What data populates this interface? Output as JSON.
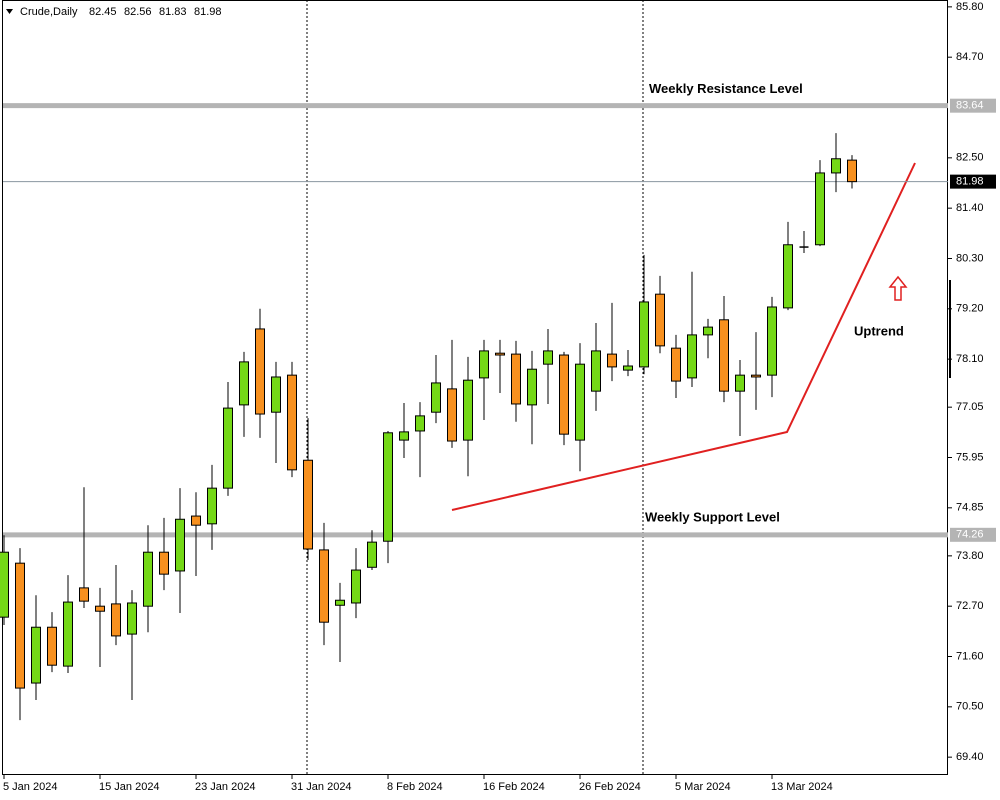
{
  "chart_data": {
    "type": "candlestick",
    "title": "Crude,Daily",
    "header_ohlc": [
      82.45,
      82.56,
      81.83,
      81.98
    ],
    "categories": [
      "5 Jan 2024",
      null,
      null,
      null,
      null,
      null,
      "15 Jan 2024",
      null,
      null,
      null,
      null,
      null,
      "23 Jan 2024",
      null,
      null,
      null,
      null,
      null,
      "31 Jan 2024",
      null,
      null,
      null,
      null,
      null,
      "8 Feb 2024",
      null,
      null,
      null,
      null,
      null,
      "16 Feb 2024",
      null,
      null,
      null,
      null,
      null,
      "26 Feb 2024",
      null,
      null,
      null,
      null,
      null,
      "5 Mar 2024",
      null,
      null,
      null,
      null,
      null,
      "13 Mar 2024",
      null,
      null,
      null,
      null,
      null
    ],
    "open": [
      72.46,
      73.64,
      71.02,
      72.24,
      71.39,
      73.1,
      72.7,
      72.75,
      72.09,
      72.7,
      73.88,
      73.47,
      74.67,
      74.5,
      75.28,
      77.1,
      78.76,
      76.94,
      77.75,
      75.89,
      73.93,
      72.72,
      72.77,
      73.55,
      74.12,
      76.33,
      76.53,
      76.94,
      77.45,
      76.33,
      77.69,
      78.23,
      78.21,
      77.1,
      77.99,
      78.19,
      76.33,
      77.4,
      78.21,
      77.86,
      77.93,
      79.52,
      78.34,
      77.69,
      78.63,
      78.96,
      77.4,
      77.75,
      77.75,
      79.22,
      80.55,
      80.6,
      82.17,
      82.45
    ],
    "high": [
      74.25,
      73.97,
      72.94,
      72.57,
      73.38,
      75.3,
      73.1,
      73.6,
      73.05,
      74.47,
      74.63,
      75.28,
      75.19,
      75.79,
      77.6,
      78.26,
      79.2,
      78.04,
      78.04,
      76.81,
      74.52,
      73.21,
      73.97,
      74.36,
      76.53,
      77.14,
      77.16,
      78.19,
      78.52,
      78.15,
      78.52,
      78.52,
      78.5,
      78.28,
      78.76,
      78.26,
      78.45,
      78.89,
      79.33,
      78.3,
      80.38,
      79.92,
      78.63,
      80.01,
      78.98,
      79.48,
      78.08,
      78.69,
      79.46,
      81.1,
      80.9,
      82.45,
      83.04,
      82.56
    ],
    "low": [
      72.29,
      70.21,
      70.65,
      71.26,
      71.24,
      72.66,
      71.37,
      71.85,
      70.65,
      72.13,
      73.05,
      72.55,
      73.36,
      73.93,
      75.11,
      76.4,
      76.38,
      75.83,
      75.52,
      73.71,
      71.85,
      71.48,
      72.44,
      73.49,
      73.64,
      75.94,
      75.52,
      76.7,
      76.16,
      75.54,
      76.77,
      77.36,
      76.73,
      76.24,
      77.12,
      76.22,
      75.65,
      76.97,
      77.62,
      77.73,
      77.77,
      78.23,
      77.25,
      77.49,
      78.12,
      77.16,
      76.42,
      76.99,
      77.27,
      79.17,
      80.42,
      80.57,
      81.75,
      81.83
    ],
    "close": [
      73.88,
      70.91,
      72.24,
      71.41,
      72.79,
      72.81,
      72.59,
      72.05,
      72.77,
      73.88,
      73.4,
      74.6,
      74.47,
      75.28,
      77.03,
      78.04,
      76.9,
      77.71,
      75.68,
      73.95,
      72.35,
      72.83,
      73.49,
      74.1,
      76.49,
      76.51,
      76.86,
      77.58,
      76.31,
      77.64,
      78.28,
      78.19,
      77.12,
      77.88,
      78.28,
      76.46,
      77.99,
      78.28,
      77.93,
      77.95,
      79.35,
      78.39,
      77.62,
      78.63,
      78.8,
      77.4,
      77.75,
      77.71,
      79.24,
      80.6,
      80.55,
      82.17,
      82.48,
      81.98
    ],
    "up_color": "#74d816",
    "down_color": "#f7901e",
    "ylim": [
      69.01,
      85.95
    ],
    "yticks": [
      {
        "value": 85.8,
        "label": "85.80"
      },
      {
        "value": 84.7,
        "label": "84.70"
      },
      {
        "value": 82.5,
        "label": "82.50"
      },
      {
        "value": 81.4,
        "label": "81.40"
      },
      {
        "value": 80.3,
        "label": "80.30"
      },
      {
        "value": 79.2,
        "label": "79.20"
      },
      {
        "value": 78.1,
        "label": "78.10"
      },
      {
        "value": 77.05,
        "label": "77.05"
      },
      {
        "value": 75.95,
        "label": "75.95"
      },
      {
        "value": 74.85,
        "label": "74.85"
      },
      {
        "value": 73.8,
        "label": "73.80"
      },
      {
        "value": 72.7,
        "label": "72.70"
      },
      {
        "value": 71.6,
        "label": "71.60"
      },
      {
        "value": 70.5,
        "label": "70.50"
      },
      {
        "value": 69.4,
        "label": "69.40"
      }
    ],
    "levels": [
      {
        "value": 83.64,
        "label": "Weekly Resistance Level"
      },
      {
        "value": 74.26,
        "label": "Weekly Support Level"
      }
    ],
    "current_price": 81.98,
    "annotation": "Uptrend"
  }
}
